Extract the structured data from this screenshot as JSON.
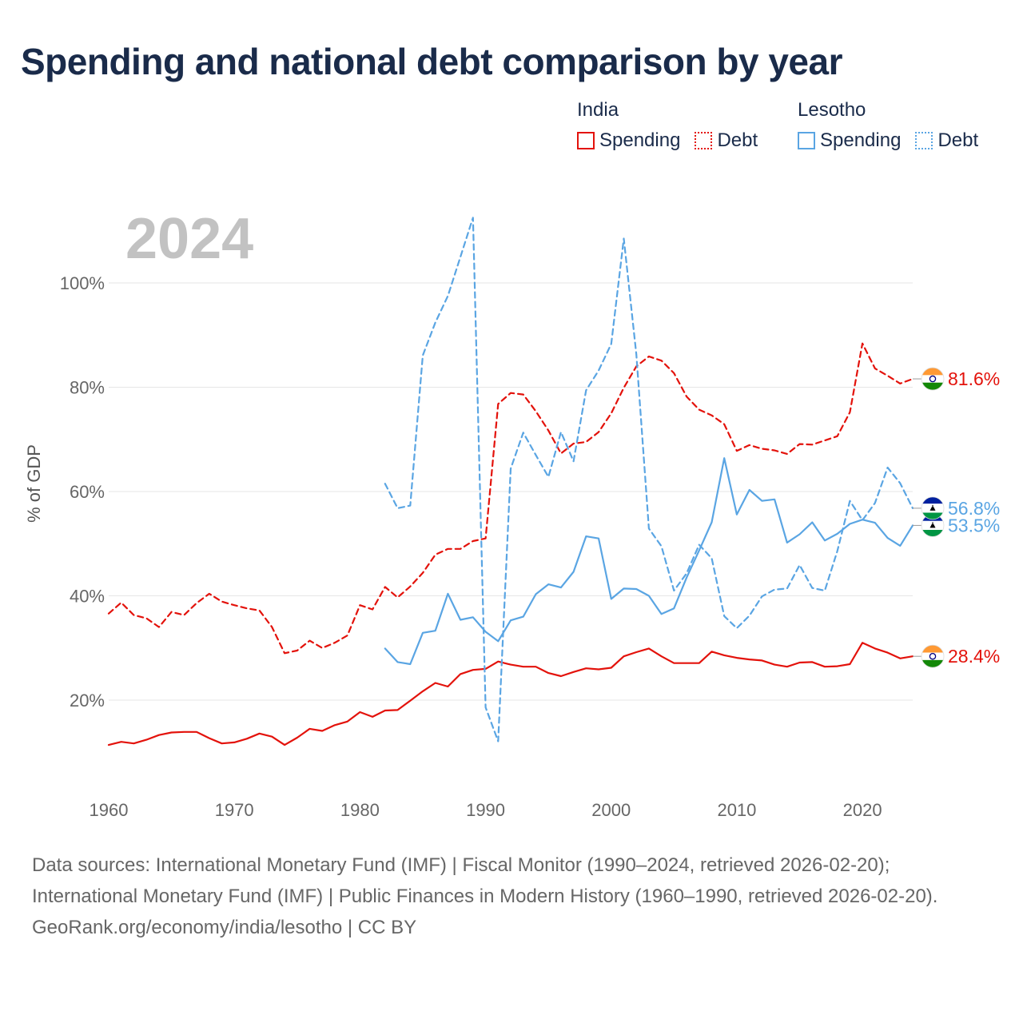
{
  "title": "Spending and national debt comparison by year",
  "legend": {
    "groups": [
      {
        "country": "India",
        "color": "#e3120b",
        "items": [
          {
            "label": "Spending",
            "style": "solid"
          },
          {
            "label": "Debt",
            "style": "dotted"
          }
        ]
      },
      {
        "country": "Lesotho",
        "color": "#5aa5e3",
        "items": [
          {
            "label": "Spending",
            "style": "solid"
          },
          {
            "label": "Debt",
            "style": "dotted"
          }
        ]
      }
    ]
  },
  "chart_data": {
    "type": "line",
    "year_label": "2024",
    "ylabel": "% of GDP",
    "xlim": [
      1960,
      2024
    ],
    "ylim": [
      5,
      118
    ],
    "x_ticks": [
      1960,
      1970,
      1980,
      1990,
      2000,
      2010,
      2020
    ],
    "y_ticks": [
      {
        "value": 20,
        "label": "20%"
      },
      {
        "value": 40,
        "label": "40%"
      },
      {
        "value": 60,
        "label": "60%"
      },
      {
        "value": 80,
        "label": "80%"
      },
      {
        "value": 100,
        "label": "100%"
      }
    ],
    "grid": true,
    "series": [
      {
        "name": "India Spending",
        "country": "India",
        "metric": "Spending",
        "color": "#e3120b",
        "dash": "solid",
        "end_label": "28.4%",
        "start_year": 1960,
        "values": [
          11.4,
          12.0,
          11.7,
          12.4,
          13.3,
          13.8,
          13.9,
          13.9,
          12.7,
          11.7,
          11.9,
          12.6,
          13.6,
          13.0,
          11.4,
          12.8,
          14.5,
          14.1,
          15.2,
          15.9,
          17.7,
          16.8,
          18.0,
          18.1,
          19.9,
          21.7,
          23.3,
          22.6,
          25.0,
          25.8,
          26.0,
          27.4,
          26.8,
          26.4,
          26.4,
          25.2,
          24.6,
          25.4,
          26.1,
          25.9,
          26.2,
          28.4,
          29.2,
          29.9,
          28.4,
          27.1,
          27.1,
          27.1,
          29.3,
          28.6,
          28.1,
          27.8,
          27.6,
          26.8,
          26.4,
          27.2,
          27.3,
          26.4,
          26.5,
          26.9,
          31.0,
          29.9,
          29.1,
          28.0,
          28.4
        ]
      },
      {
        "name": "India Debt",
        "country": "India",
        "metric": "Debt",
        "color": "#e3120b",
        "dash": "dashed",
        "end_label": "81.6%",
        "start_year": 1960,
        "values": [
          36.6,
          38.7,
          36.3,
          35.7,
          34.0,
          36.9,
          36.3,
          38.6,
          40.4,
          38.9,
          38.2,
          37.6,
          37.2,
          34.0,
          29.0,
          29.5,
          31.4,
          30.0,
          31.0,
          32.4,
          38.2,
          37.4,
          41.7,
          39.7,
          41.8,
          44.4,
          47.9,
          49.0,
          49.0,
          50.5,
          51.0,
          76.8,
          78.9,
          78.6,
          75.4,
          71.7,
          67.3,
          69.2,
          69.5,
          71.4,
          75.0,
          79.9,
          84.0,
          85.9,
          85.1,
          82.7,
          78.2,
          75.7,
          74.6,
          72.9,
          67.8,
          68.9,
          68.2,
          67.9,
          67.2,
          69.1,
          69.0,
          69.8,
          70.6,
          75.2,
          88.4,
          83.6,
          82.2,
          80.7,
          81.6
        ]
      },
      {
        "name": "Lesotho Spending",
        "country": "Lesotho",
        "metric": "Spending",
        "color": "#5aa5e3",
        "dash": "solid",
        "end_label": "53.5%",
        "start_year": 1982,
        "values": [
          29.9,
          27.3,
          26.9,
          32.9,
          33.3,
          40.4,
          35.4,
          35.9,
          33.1,
          31.3,
          35.3,
          36.0,
          40.3,
          42.2,
          41.6,
          44.6,
          51.4,
          51.0,
          39.4,
          41.4,
          41.3,
          40.0,
          36.5,
          37.6,
          43.5,
          48.7,
          54.1,
          66.4,
          55.6,
          60.3,
          58.2,
          58.5,
          50.2,
          51.8,
          54.1,
          50.6,
          51.9,
          53.8,
          54.6,
          54.0,
          51.1,
          49.6,
          53.5
        ]
      },
      {
        "name": "Lesotho Debt",
        "country": "Lesotho",
        "metric": "Debt",
        "color": "#5aa5e3",
        "dash": "dashed",
        "end_label": "56.8%",
        "start_year": 1982,
        "values": [
          61.5,
          56.8,
          57.3,
          86.1,
          92.4,
          97.5,
          105.0,
          112.5,
          18.6,
          12.1,
          64.4,
          71.3,
          67.0,
          62.8,
          71.4,
          65.8,
          79.4,
          83.2,
          88.3,
          108.5,
          86.3,
          52.9,
          49.5,
          41.0,
          44.3,
          49.8,
          47.2,
          36.1,
          33.8,
          36.2,
          39.9,
          41.2,
          41.4,
          45.9,
          41.5,
          41.0,
          48.6,
          58.2,
          54.5,
          57.8,
          64.6,
          61.6,
          56.8
        ]
      }
    ]
  },
  "footer": {
    "sources": "Data sources: International Monetary Fund (IMF) | Fiscal Monitor (1990–2024, retrieved 2026-02-20); International Monetary Fund (IMF) | Public Finances in Modern History (1960–1990, retrieved 2026-02-20).",
    "credit": "GeoRank.org/economy/india/lesotho | CC BY"
  }
}
